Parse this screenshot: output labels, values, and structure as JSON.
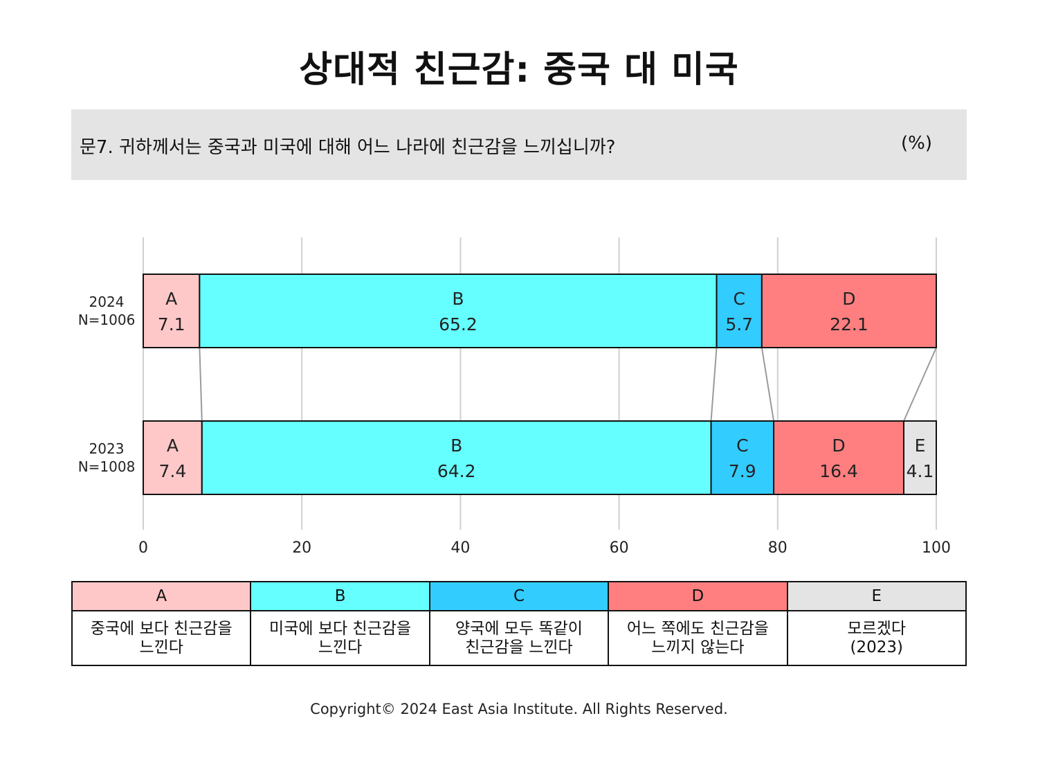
{
  "title": "상대적 친근감: 중국 대 미국",
  "question": "문7. 귀하께서는 중국과 미국에 대해 어느 나라에 친근감을 느끼십니까?",
  "unit": "(%)",
  "colors": {
    "A": "#ffc8c8",
    "B": "#66ffff",
    "C": "#33ccff",
    "D": "#ff7f80",
    "E": "#e5e4e5"
  },
  "chart_data": {
    "type": "bar",
    "orientation": "horizontal",
    "stacked": true,
    "xlim": [
      0,
      100
    ],
    "xticks": [
      0,
      20,
      40,
      60,
      80,
      100
    ],
    "grid": true,
    "rows": [
      {
        "year": "2024",
        "n": "N=1006",
        "segments": [
          {
            "key": "A",
            "value": 7.1
          },
          {
            "key": "B",
            "value": 65.2
          },
          {
            "key": "C",
            "value": 5.7
          },
          {
            "key": "D",
            "value": 22.1
          }
        ]
      },
      {
        "year": "2023",
        "n": "N=1008",
        "segments": [
          {
            "key": "A",
            "value": 7.4
          },
          {
            "key": "B",
            "value": 64.2
          },
          {
            "key": "C",
            "value": 7.9
          },
          {
            "key": "D",
            "value": 16.4
          },
          {
            "key": "E",
            "value": 4.1
          }
        ]
      }
    ]
  },
  "legend": [
    {
      "key": "A",
      "line1": "중국에 보다 친근감을",
      "line2": "느낀다"
    },
    {
      "key": "B",
      "line1": "미국에 보다 친근감을",
      "line2": "느낀다"
    },
    {
      "key": "C",
      "line1": "양국에 모두 똑같이",
      "line2": "친근감을 느낀다"
    },
    {
      "key": "D",
      "line1": "어느 쪽에도 친근감을",
      "line2": "느끼지 않는다"
    },
    {
      "key": "E",
      "line1": "모르겠다",
      "line2": "(2023)"
    }
  ],
  "copyright": "Copyright© 2024 East Asia Institute. All Rights Reserved."
}
